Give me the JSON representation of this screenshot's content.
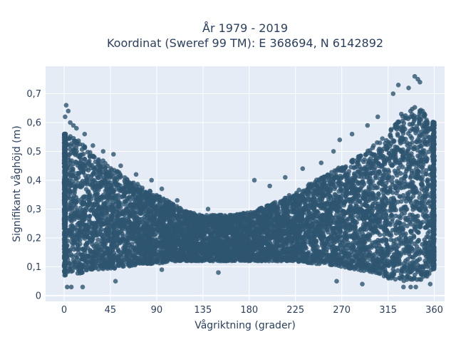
{
  "chart_data": {
    "type": "scatter",
    "title_lines": [
      "År 1979 - 2019",
      "Koordinat (Sweref 99 TM): E 368694, N 6142892"
    ],
    "xlabel": "Vågriktning (grader)",
    "ylabel": "Signifikant våghöjd (m)",
    "xlim": [
      -18,
      370
    ],
    "ylim": [
      -0.02,
      0.795
    ],
    "x_ticks": [
      0,
      45,
      90,
      135,
      180,
      225,
      270,
      315,
      360
    ],
    "x_tick_labels": [
      "0",
      "45",
      "90",
      "135",
      "180",
      "225",
      "270",
      "315",
      "360"
    ],
    "y_ticks": [
      0,
      0.1,
      0.2,
      0.3,
      0.4,
      0.5,
      0.6,
      0.7
    ],
    "y_tick_labels": [
      "0",
      "0,1",
      "0,2",
      "0,3",
      "0,4",
      "0,5",
      "0,6",
      "0,7"
    ],
    "grid": true,
    "legend": "none",
    "marker_color": "#2e5570",
    "plot_background": "#e5ecf6",
    "envelope": {
      "x": [
        0,
        10,
        20,
        30,
        45,
        60,
        75,
        90,
        105,
        120,
        135,
        150,
        165,
        180,
        195,
        210,
        225,
        240,
        255,
        270,
        285,
        300,
        315,
        330,
        345,
        360
      ],
      "upper": [
        0.56,
        0.55,
        0.52,
        0.49,
        0.45,
        0.41,
        0.38,
        0.35,
        0.32,
        0.29,
        0.28,
        0.28,
        0.28,
        0.29,
        0.31,
        0.33,
        0.36,
        0.39,
        0.42,
        0.45,
        0.48,
        0.52,
        0.57,
        0.64,
        0.66,
        0.6
      ],
      "lower": [
        0.07,
        0.07,
        0.08,
        0.09,
        0.09,
        0.1,
        0.11,
        0.11,
        0.12,
        0.12,
        0.12,
        0.12,
        0.12,
        0.12,
        0.12,
        0.12,
        0.12,
        0.11,
        0.11,
        0.1,
        0.09,
        0.08,
        0.06,
        0.05,
        0.05,
        0.08
      ]
    },
    "outliers": [
      {
        "x": 2,
        "y": 0.66
      },
      {
        "x": 4,
        "y": 0.64
      },
      {
        "x": 1,
        "y": 0.62
      },
      {
        "x": 6,
        "y": 0.6
      },
      {
        "x": 12,
        "y": 0.58
      },
      {
        "x": 9,
        "y": 0.59
      },
      {
        "x": 20,
        "y": 0.56
      },
      {
        "x": 28,
        "y": 0.52
      },
      {
        "x": 38,
        "y": 0.5
      },
      {
        "x": 48,
        "y": 0.49
      },
      {
        "x": 55,
        "y": 0.45
      },
      {
        "x": 70,
        "y": 0.42
      },
      {
        "x": 85,
        "y": 0.4
      },
      {
        "x": 95,
        "y": 0.37
      },
      {
        "x": 110,
        "y": 0.33
      },
      {
        "x": 140,
        "y": 0.3
      },
      {
        "x": 185,
        "y": 0.4
      },
      {
        "x": 200,
        "y": 0.38
      },
      {
        "x": 215,
        "y": 0.41
      },
      {
        "x": 232,
        "y": 0.44
      },
      {
        "x": 250,
        "y": 0.46
      },
      {
        "x": 262,
        "y": 0.5
      },
      {
        "x": 268,
        "y": 0.54
      },
      {
        "x": 280,
        "y": 0.56
      },
      {
        "x": 295,
        "y": 0.59
      },
      {
        "x": 305,
        "y": 0.62
      },
      {
        "x": 320,
        "y": 0.7
      },
      {
        "x": 325,
        "y": 0.73
      },
      {
        "x": 335,
        "y": 0.72
      },
      {
        "x": 341,
        "y": 0.76
      },
      {
        "x": 344,
        "y": 0.75
      },
      {
        "x": 346,
        "y": 0.74
      },
      {
        "x": 3,
        "y": 0.03
      },
      {
        "x": 7,
        "y": 0.03
      },
      {
        "x": 18,
        "y": 0.03
      },
      {
        "x": 50,
        "y": 0.05
      },
      {
        "x": 330,
        "y": 0.03
      },
      {
        "x": 337,
        "y": 0.03
      },
      {
        "x": 342,
        "y": 0.03
      },
      {
        "x": 356,
        "y": 0.04
      },
      {
        "x": 290,
        "y": 0.04
      },
      {
        "x": 265,
        "y": 0.05
      },
      {
        "x": 150,
        "y": 0.08
      },
      {
        "x": 95,
        "y": 0.09
      }
    ],
    "point_count": 7000,
    "seed": 20190101
  }
}
